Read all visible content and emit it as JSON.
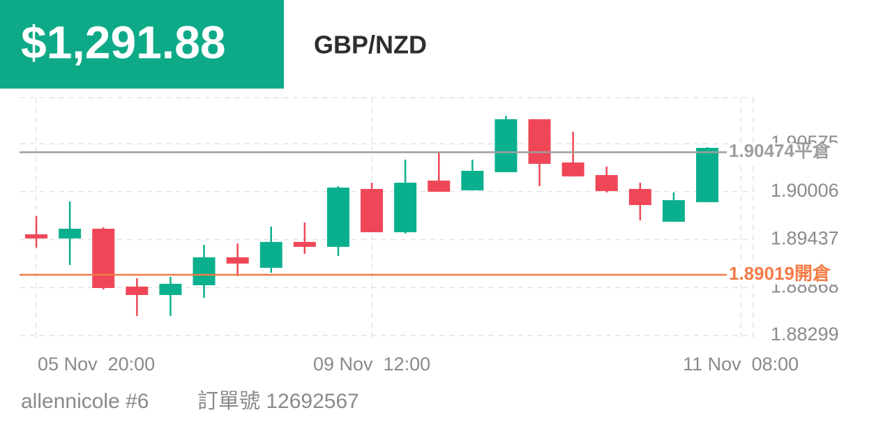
{
  "header": {
    "amount": "$1,291.88",
    "symbol": "GBP/NZD"
  },
  "footer": {
    "user": "allennicole #6",
    "order": "訂單號 12692567"
  },
  "chart_data": {
    "type": "candlestick",
    "categories": [
      "05 Nov  20:00",
      null,
      null,
      null,
      null,
      null,
      null,
      null,
      null,
      null,
      "09 Nov  12:00",
      null,
      null,
      null,
      null,
      null,
      null,
      null,
      null,
      null,
      null,
      "11 Nov  08:00"
    ],
    "open": [
      1.895,
      1.8945,
      1.89566,
      1.88879,
      1.88779,
      1.88895,
      1.89226,
      1.89102,
      1.89409,
      1.89351,
      1.90038,
      1.89524,
      1.90137,
      1.90021,
      1.90237,
      1.90866,
      1.90352,
      1.90203,
      1.90038,
      1.89649,
      1.89881,
      null
    ],
    "high": [
      1.89715,
      1.89889,
      1.89582,
      1.88978,
      1.88995,
      1.89375,
      1.89392,
      1.89591,
      1.8964,
      1.90071,
      1.90112,
      1.90386,
      1.90468,
      1.90386,
      1.90907,
      1.90866,
      1.90717,
      1.90303,
      1.90112,
      1.89996,
      1.90535,
      null
    ],
    "low": [
      1.89342,
      1.89135,
      1.88846,
      1.88531,
      1.88531,
      1.88746,
      1.89003,
      1.89044,
      1.89268,
      1.89243,
      1.89524,
      1.89508,
      1.90005,
      1.90021,
      1.90237,
      1.90071,
      1.90187,
      1.89996,
      1.89665,
      1.89649,
      1.89881,
      null
    ],
    "close": [
      1.8945,
      1.89566,
      1.88862,
      1.88779,
      1.88912,
      1.89226,
      1.89152,
      1.89409,
      1.89351,
      1.90054,
      1.89524,
      1.90112,
      1.90005,
      1.90253,
      1.90866,
      1.90336,
      1.90187,
      1.90013,
      1.89847,
      1.89905,
      1.90526,
      null
    ],
    "up_color": "#0ab08e",
    "down_color": "#ef4757",
    "ylim": [
      1.88224,
      1.91122
    ],
    "yticks": [
      1.88299,
      1.88868,
      1.89437,
      1.90006,
      1.90575
    ],
    "grid": true,
    "reference_lines": [
      {
        "value": 1.90474,
        "label": "1.90474平倉",
        "color": "#9e9e9e"
      },
      {
        "value": 1.89019,
        "label": "1.89019開倉",
        "color": "#f47b46"
      }
    ]
  }
}
